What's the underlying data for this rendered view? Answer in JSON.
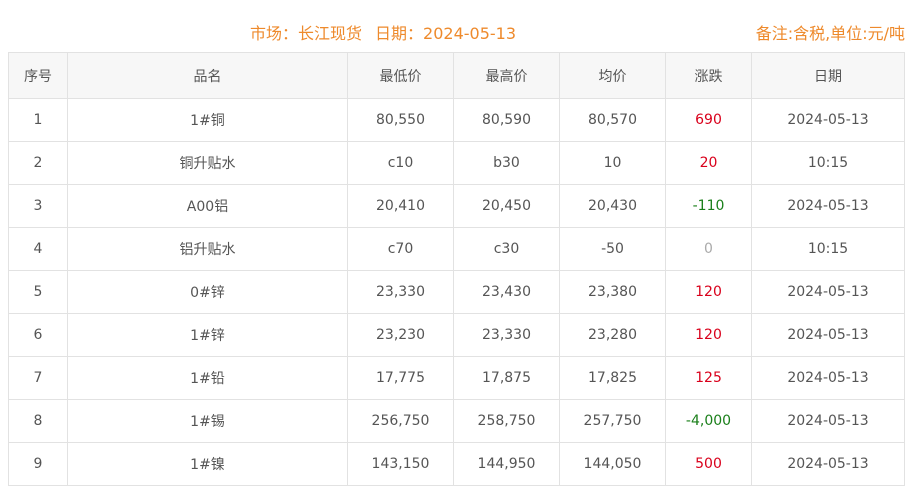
{
  "header": {
    "market_label": "市场：长江现货",
    "date_label": "日期：2024-05-13",
    "note": "备注:含税,单位:元/吨"
  },
  "colors": {
    "accent": "#ee8a2c",
    "up": "#d9001b",
    "down": "#1a7f1a",
    "flat": "#aaaaaa"
  },
  "table": {
    "columns": [
      "序号",
      "品名",
      "最低价",
      "最高价",
      "均价",
      "涨跌",
      "日期"
    ],
    "rows": [
      {
        "no": "1",
        "name": "1#铜",
        "low": "80,550",
        "high": "80,590",
        "avg": "80,570",
        "change": "690",
        "trend": "up",
        "date": "2024-05-13"
      },
      {
        "no": "2",
        "name": "铜升贴水",
        "low": "c10",
        "high": "b30",
        "avg": "10",
        "change": "20",
        "trend": "up",
        "date": "10:15"
      },
      {
        "no": "3",
        "name": "A00铝",
        "low": "20,410",
        "high": "20,450",
        "avg": "20,430",
        "change": "-110",
        "trend": "down",
        "date": "2024-05-13"
      },
      {
        "no": "4",
        "name": "铝升贴水",
        "low": "c70",
        "high": "c30",
        "avg": "-50",
        "change": "0",
        "trend": "flat",
        "date": "10:15"
      },
      {
        "no": "5",
        "name": "0#锌",
        "low": "23,330",
        "high": "23,430",
        "avg": "23,380",
        "change": "120",
        "trend": "up",
        "date": "2024-05-13"
      },
      {
        "no": "6",
        "name": "1#锌",
        "low": "23,230",
        "high": "23,330",
        "avg": "23,280",
        "change": "120",
        "trend": "up",
        "date": "2024-05-13"
      },
      {
        "no": "7",
        "name": "1#铅",
        "low": "17,775",
        "high": "17,875",
        "avg": "17,825",
        "change": "125",
        "trend": "up",
        "date": "2024-05-13"
      },
      {
        "no": "8",
        "name": "1#锡",
        "low": "256,750",
        "high": "258,750",
        "avg": "257,750",
        "change": "-4,000",
        "trend": "down",
        "date": "2024-05-13"
      },
      {
        "no": "9",
        "name": "1#镍",
        "low": "143,150",
        "high": "144,950",
        "avg": "144,050",
        "change": "500",
        "trend": "up",
        "date": "2024-05-13"
      }
    ]
  }
}
